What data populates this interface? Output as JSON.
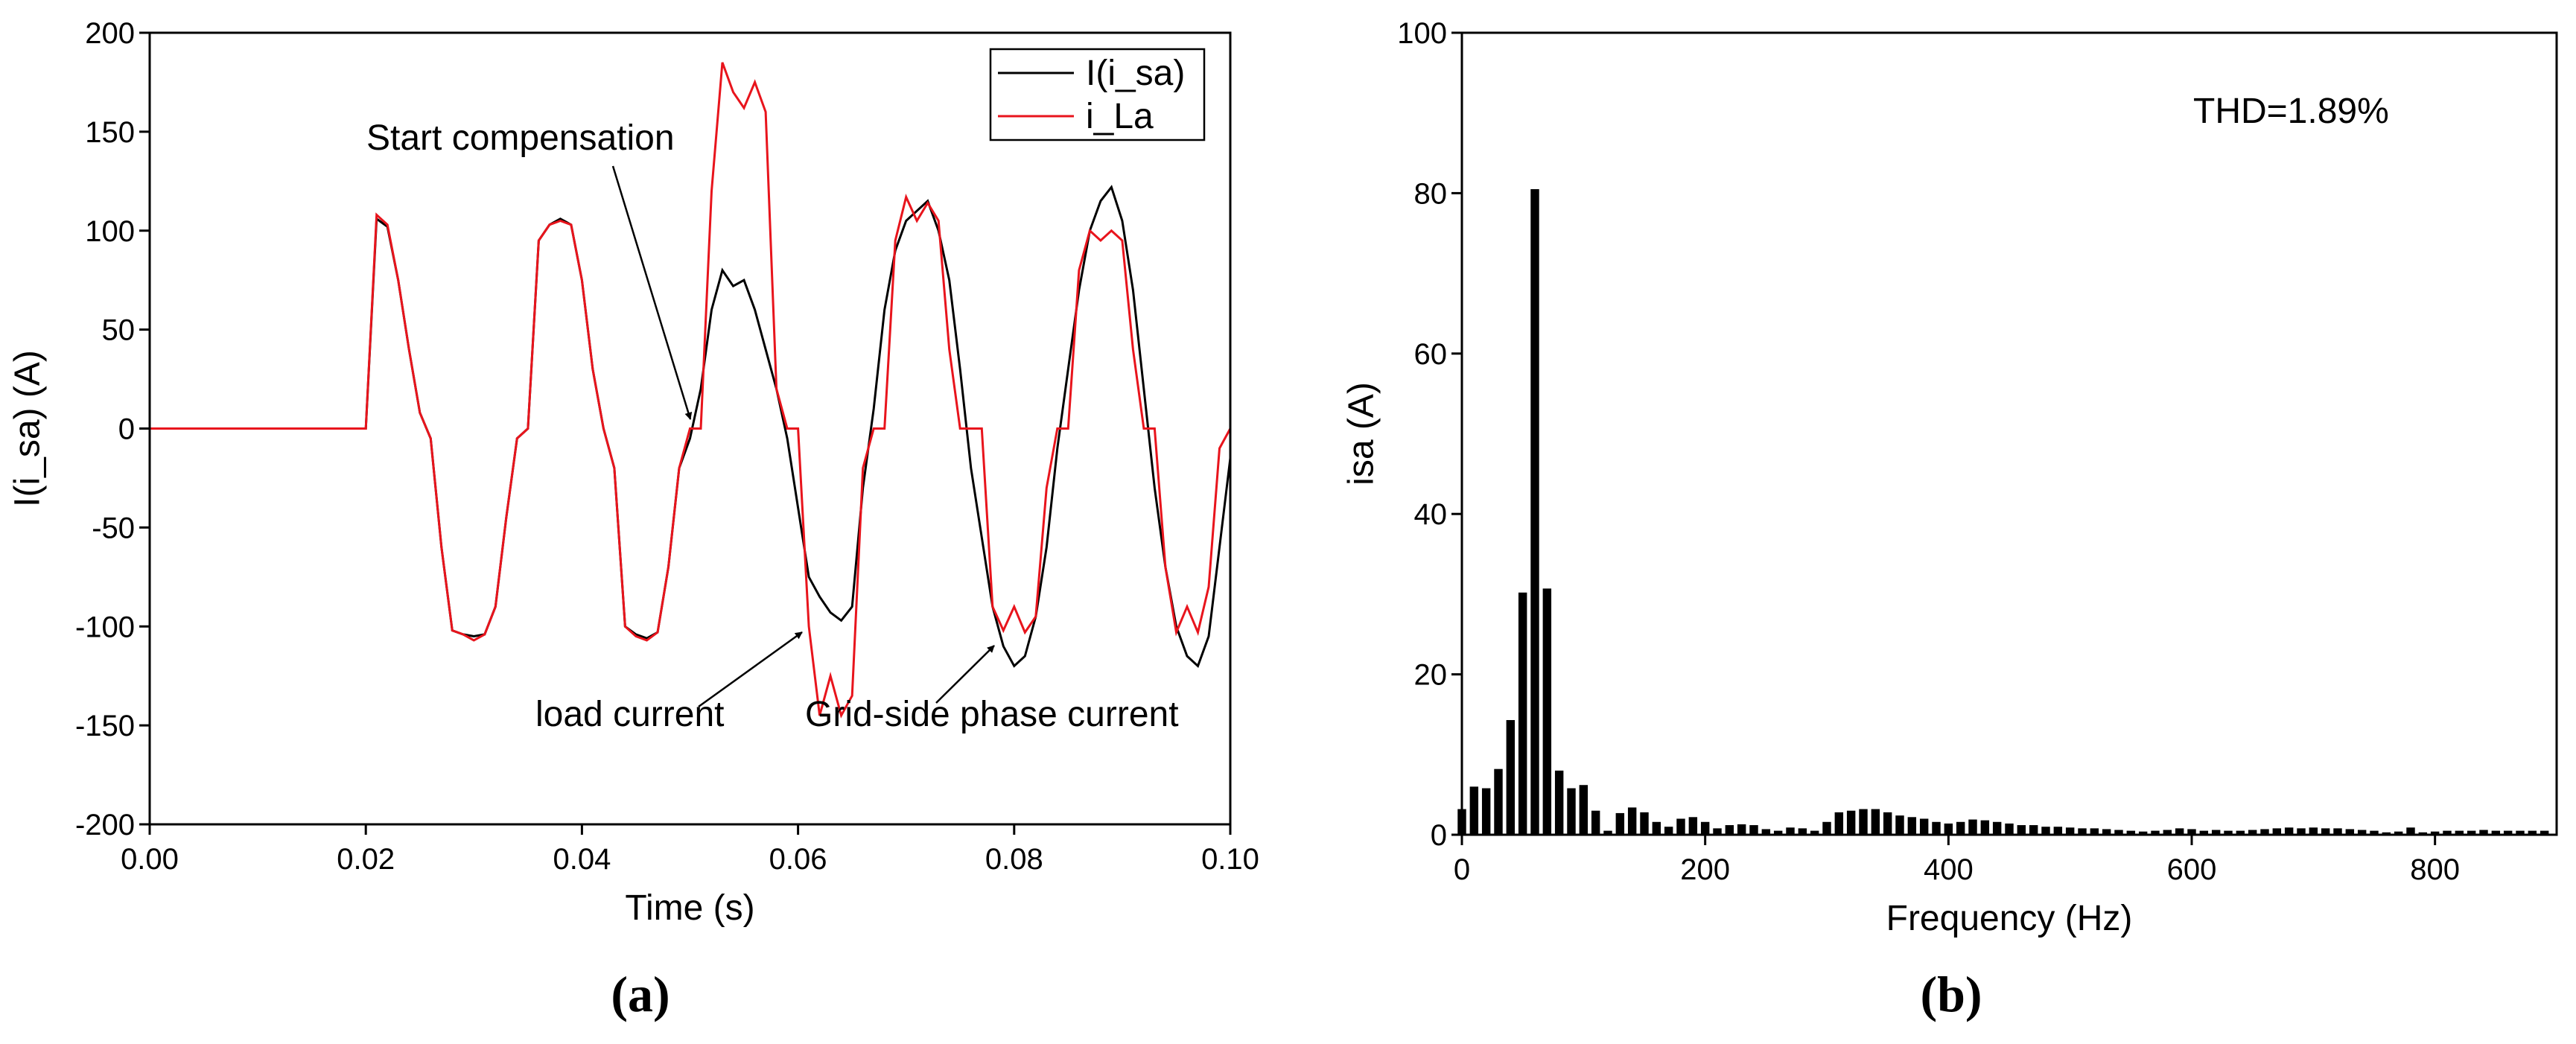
{
  "chart_data": [
    {
      "type": "line",
      "caption": "(a)",
      "x_label": "Time (s)",
      "y_label": "I(i_sa) (A)",
      "x": [
        0,
        0.001,
        0.002,
        0.003,
        0.004,
        0.005,
        0.006,
        0.007,
        0.008,
        0.009,
        0.01,
        0.011,
        0.012,
        0.013,
        0.014,
        0.015,
        0.016,
        0.017,
        0.018,
        0.019,
        0.02,
        0.021,
        0.022,
        0.023,
        0.024,
        0.025,
        0.026,
        0.027,
        0.028,
        0.029,
        0.03,
        0.031,
        0.032,
        0.033,
        0.034,
        0.035,
        0.036,
        0.037,
        0.038,
        0.039,
        0.04,
        0.041,
        0.042,
        0.043,
        0.044,
        0.045,
        0.046,
        0.047,
        0.048,
        0.049,
        0.05,
        0.051,
        0.052,
        0.053,
        0.054,
        0.055,
        0.056,
        0.057,
        0.058,
        0.059,
        0.06,
        0.061,
        0.062,
        0.063,
        0.064,
        0.065,
        0.066,
        0.067,
        0.068,
        0.069,
        0.07,
        0.071,
        0.072,
        0.073,
        0.074,
        0.075,
        0.076,
        0.077,
        0.078,
        0.079,
        0.08,
        0.081,
        0.082,
        0.083,
        0.084,
        0.085,
        0.086,
        0.087,
        0.088,
        0.089,
        0.09,
        0.091,
        0.092,
        0.093,
        0.094,
        0.095,
        0.096,
        0.097,
        0.098,
        0.099,
        0.1
      ],
      "series": [
        {
          "name": "I(i_sa)",
          "color": "#000000",
          "values": [
            0,
            0,
            0,
            0,
            0,
            0,
            0,
            0,
            0,
            0,
            0,
            0,
            0,
            0,
            0,
            0,
            0,
            0,
            0,
            0,
            0,
            106,
            102,
            75,
            40,
            8,
            -5,
            -60,
            -102,
            -104,
            -105,
            -104,
            -90,
            -45,
            -5,
            0,
            95,
            103,
            106,
            103,
            75,
            30,
            0,
            -20,
            -100,
            -104,
            -106,
            -103,
            -70,
            -20,
            -5,
            20,
            60,
            80,
            72,
            75,
            60,
            40,
            20,
            -5,
            -40,
            -75,
            -85,
            -93,
            -97,
            -90,
            -30,
            10,
            60,
            90,
            105,
            110,
            115,
            100,
            75,
            30,
            -20,
            -55,
            -90,
            -110,
            -120,
            -115,
            -95,
            -60,
            -10,
            30,
            70,
            100,
            115,
            122,
            105,
            70,
            20,
            -30,
            -70,
            -100,
            -115,
            -120,
            -105,
            -60,
            -15
          ]
        },
        {
          "name": "i_La",
          "color": "#e8141c",
          "values": [
            0,
            0,
            0,
            0,
            0,
            0,
            0,
            0,
            0,
            0,
            0,
            0,
            0,
            0,
            0,
            0,
            0,
            0,
            0,
            0,
            0,
            108,
            103,
            75,
            40,
            8,
            -5,
            -60,
            -102,
            -104,
            -107,
            -104,
            -90,
            -45,
            -5,
            0,
            95,
            103,
            105,
            103,
            75,
            30,
            0,
            -20,
            -100,
            -105,
            -107,
            -103,
            -70,
            -20,
            0,
            0,
            120,
            185,
            170,
            162,
            175,
            160,
            20,
            0,
            0,
            -100,
            -145,
            -125,
            -145,
            -135,
            -20,
            0,
            0,
            95,
            117,
            105,
            114,
            105,
            40,
            0,
            0,
            0,
            -90,
            -102,
            -90,
            -103,
            -95,
            -30,
            0,
            0,
            80,
            100,
            95,
            100,
            95,
            40,
            0,
            0,
            -70,
            -103,
            -90,
            -103,
            -80,
            -10,
            0
          ]
        }
      ],
      "xlim": [
        0,
        0.1
      ],
      "xticks": [
        {
          "value": 0,
          "label": "0.00"
        },
        0.02,
        0.04,
        0.06,
        0.08,
        {
          "value": 0.1,
          "label": "0.10"
        }
      ],
      "ylim": [
        -200,
        200
      ],
      "yticks": [
        -200,
        -150,
        -100,
        -50,
        0,
        50,
        100,
        150,
        200
      ],
      "legend": "upper right",
      "annotations": [
        "Start compensation",
        "load current",
        "Grid-side phase current"
      ]
    },
    {
      "type": "bar",
      "caption": "(b)",
      "x_label": "Frequency (Hz)",
      "y_label": "isa (A)",
      "color": "#000000",
      "x": [
        0,
        10,
        20,
        30,
        40,
        50,
        60,
        70,
        80,
        90,
        100,
        110,
        120,
        130,
        140,
        150,
        160,
        170,
        180,
        190,
        200,
        210,
        220,
        230,
        240,
        250,
        260,
        270,
        280,
        290,
        300,
        310,
        320,
        330,
        340,
        350,
        360,
        370,
        380,
        390,
        400,
        410,
        420,
        430,
        440,
        450,
        460,
        470,
        480,
        490,
        500,
        510,
        520,
        530,
        540,
        550,
        560,
        570,
        580,
        590,
        600,
        610,
        620,
        630,
        640,
        650,
        660,
        670,
        680,
        690,
        700,
        710,
        720,
        730,
        740,
        750,
        760,
        770,
        780,
        790,
        800,
        810,
        820,
        830,
        840,
        850,
        860,
        870,
        880,
        890
      ],
      "values": [
        3.2,
        6,
        5.8,
        8.2,
        14.3,
        30.2,
        80.5,
        30.7,
        8,
        5.8,
        6.2,
        3,
        0.5,
        2.7,
        3.4,
        2.8,
        1.6,
        1,
        2,
        2.2,
        1.6,
        0.8,
        1.2,
        1.3,
        1.2,
        0.7,
        0.5,
        0.9,
        0.8,
        0.5,
        1.6,
        2.8,
        3,
        3.2,
        3.2,
        2.8,
        2.4,
        2.2,
        2,
        1.6,
        1.4,
        1.6,
        1.9,
        1.8,
        1.6,
        1.4,
        1.2,
        1.2,
        1,
        1,
        0.9,
        0.8,
        0.8,
        0.7,
        0.6,
        0.5,
        0.4,
        0.5,
        0.6,
        0.8,
        0.7,
        0.5,
        0.6,
        0.5,
        0.5,
        0.6,
        0.7,
        0.8,
        0.9,
        0.8,
        0.9,
        0.8,
        0.8,
        0.7,
        0.6,
        0.5,
        0.3,
        0.4,
        0.9,
        0.3,
        0.4,
        0.5,
        0.5,
        0.5,
        0.6,
        0.5,
        0.5,
        0.5,
        0.5,
        0.5
      ],
      "xlim": [
        0,
        900
      ],
      "xticks": [
        0,
        200,
        400,
        600,
        800
      ],
      "ylim": [
        0,
        100
      ],
      "yticks": [
        0,
        20,
        40,
        60,
        80,
        100
      ],
      "annotations": [
        "THD=1.89%"
      ]
    }
  ]
}
